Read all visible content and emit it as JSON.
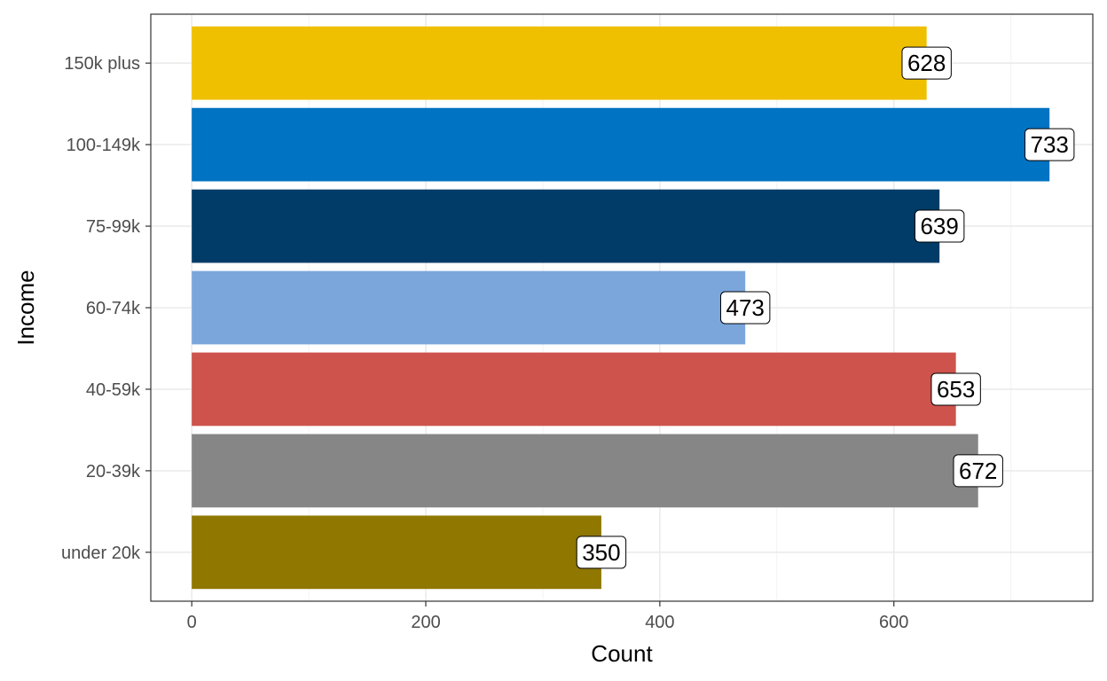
{
  "chart_data": {
    "type": "bar",
    "orientation": "horizontal",
    "categories": [
      "under 20k",
      "20-39k",
      "40-59k",
      "60-74k",
      "75-99k",
      "100-149k",
      "150k plus"
    ],
    "values": [
      350,
      672,
      653,
      473,
      639,
      733,
      628
    ],
    "colors": [
      "#8f7700",
      "#868686",
      "#cd534c",
      "#7aa6dc",
      "#003c67",
      "#0073c2",
      "#efc000"
    ],
    "xlabel": "Count",
    "ylabel": "Income",
    "xlim": [
      -35,
      770
    ],
    "x_ticks": [
      0,
      200,
      400,
      600
    ],
    "x_minor_ticks": [
      100,
      300,
      500,
      700
    ],
    "grid": true,
    "legend": "none"
  }
}
